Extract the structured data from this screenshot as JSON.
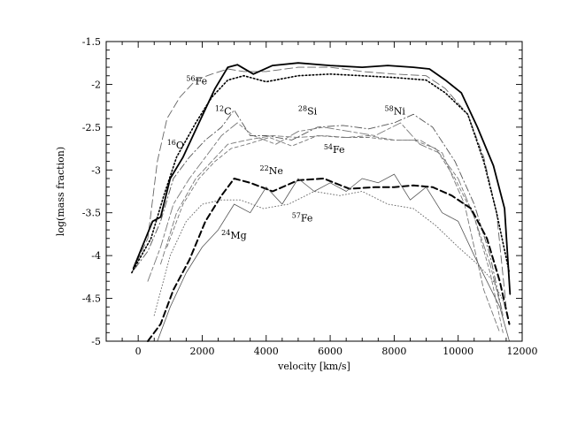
{
  "chart_data": {
    "type": "line",
    "title": "",
    "xlabel": "velocity [km/s]",
    "ylabel": "log(mass fraction)",
    "xlim": [
      -1000,
      12000
    ],
    "ylim": [
      -5,
      -1.5
    ],
    "x_ticks": [
      0,
      2000,
      4000,
      6000,
      8000,
      10000,
      12000
    ],
    "x_tick_labels": [
      "0",
      "2000",
      "4000",
      "6000",
      "8000",
      "10000",
      "12000"
    ],
    "y_ticks": [
      -5,
      -4.5,
      -4,
      -3.5,
      -3,
      -2.5,
      -2,
      -1.5
    ],
    "y_tick_labels": [
      "-5",
      "-4.5",
      "-4",
      "-3.5",
      "-3",
      "-2.5",
      "-2",
      "-1.5"
    ],
    "grid": false,
    "legend": "none (curves labeled inline)",
    "series": [
      {
        "name": "56Fe",
        "style": "long-dash thin",
        "color": "#666666",
        "x": [
          -200,
          300,
          600,
          900,
          1300,
          1800,
          2300,
          2800,
          3300,
          4000,
          5000,
          6000,
          7000,
          8000,
          9000,
          9600,
          10300,
          10800,
          11200,
          11500
        ],
        "y": [
          -4.2,
          -3.8,
          -2.9,
          -2.4,
          -2.15,
          -1.95,
          -1.88,
          -1.82,
          -1.85,
          -1.85,
          -1.8,
          -1.8,
          -1.85,
          -1.88,
          -1.9,
          -2.05,
          -2.35,
          -2.85,
          -3.5,
          -4.6
        ]
      },
      {
        "name": "dotted (unlabeled)",
        "style": "dotted medium",
        "color": "#000000",
        "x": [
          -200,
          400,
          800,
          1200,
          1800,
          2300,
          2800,
          3300,
          4000,
          5000,
          6000,
          7000,
          8000,
          9000,
          9600,
          10300,
          10800,
          11200,
          11600
        ],
        "y": [
          -4.2,
          -3.8,
          -3.3,
          -2.85,
          -2.45,
          -2.15,
          -1.95,
          -1.9,
          -1.97,
          -1.9,
          -1.88,
          -1.9,
          -1.92,
          -1.95,
          -2.1,
          -2.35,
          -2.9,
          -3.5,
          -4.2
        ]
      },
      {
        "name": "16O",
        "style": "solid thick",
        "color": "#000000",
        "x": [
          -150,
          450,
          700,
          1000,
          1400,
          1900,
          2400,
          2800,
          3100,
          3600,
          4200,
          5000,
          6000,
          7000,
          7800,
          8600,
          9100,
          9600,
          10100,
          10600,
          11100,
          11450,
          11620
        ],
        "y": [
          -4.15,
          -3.6,
          -3.55,
          -3.1,
          -2.85,
          -2.45,
          -2.05,
          -1.8,
          -1.77,
          -1.88,
          -1.78,
          -1.75,
          -1.78,
          -1.8,
          -1.78,
          -1.8,
          -1.82,
          -1.95,
          -2.1,
          -2.5,
          -2.95,
          -3.45,
          -4.45
        ]
      },
      {
        "name": "12C",
        "style": "dash-dot",
        "color": "#555555",
        "x": [
          -100,
          300,
          700,
          1100,
          1600,
          2100,
          2600,
          3000,
          3500,
          4000,
          4800,
          5600,
          6400,
          7200,
          8000,
          8600,
          9200,
          9900,
          10500,
          11000,
          11400
        ],
        "y": [
          -4.15,
          -3.95,
          -3.6,
          -3.1,
          -2.85,
          -2.65,
          -2.5,
          -2.3,
          -2.6,
          -2.6,
          -2.65,
          -2.5,
          -2.48,
          -2.52,
          -2.45,
          -2.35,
          -2.5,
          -2.9,
          -3.4,
          -4.0,
          -4.7
        ]
      },
      {
        "name": "28Si",
        "style": "long-short dash",
        "color": "#777777",
        "x": [
          300,
          700,
          1100,
          1600,
          2100,
          2600,
          3100,
          3600,
          4300,
          5000,
          5800,
          6600,
          7400,
          8200,
          8800,
          9400,
          10000,
          10500,
          11000,
          11400
        ],
        "y": [
          -4.3,
          -3.9,
          -3.4,
          -3.1,
          -2.85,
          -2.6,
          -2.45,
          -2.6,
          -2.7,
          -2.55,
          -2.5,
          -2.55,
          -2.6,
          -2.45,
          -2.7,
          -2.8,
          -3.1,
          -3.55,
          -4.1,
          -4.7
        ]
      },
      {
        "name": "58Ni",
        "style": "dashed",
        "color": "#777777",
        "x": [
          700,
          1200,
          1800,
          2300,
          2800,
          3400,
          4200,
          5000,
          5800,
          6500,
          7200,
          8000,
          8800,
          9500,
          10200,
          10800,
          11300
        ],
        "y": [
          -4.1,
          -3.5,
          -3.1,
          -2.9,
          -2.7,
          -2.65,
          -2.6,
          -2.62,
          -2.6,
          -2.62,
          -2.6,
          -2.65,
          -2.65,
          -2.8,
          -3.4,
          -4.4,
          -4.9
        ]
      },
      {
        "name": "54Fe",
        "style": "short dash",
        "color": "#777777",
        "x": [
          900,
          1400,
          1900,
          2400,
          2900,
          3400,
          4100,
          4800,
          5600,
          6400,
          7200,
          7900,
          8600,
          9300,
          9900,
          10500,
          11000,
          11400
        ],
        "y": [
          -3.9,
          -3.4,
          -3.1,
          -2.9,
          -2.75,
          -2.7,
          -2.62,
          -2.72,
          -2.6,
          -2.62,
          -2.62,
          -2.65,
          -2.65,
          -2.75,
          -3.1,
          -3.55,
          -4.2,
          -4.9
        ]
      },
      {
        "name": "22Ne",
        "style": "dashed thick",
        "color": "#000000",
        "x": [
          300,
          700,
          1100,
          1600,
          2100,
          2600,
          3000,
          3500,
          4200,
          5000,
          5800,
          6600,
          7400,
          8000,
          8600,
          9200,
          9800,
          10400,
          10900,
          11300,
          11600
        ],
        "y": [
          -5.0,
          -4.8,
          -4.4,
          -4.05,
          -3.6,
          -3.3,
          -3.1,
          -3.15,
          -3.25,
          -3.12,
          -3.1,
          -3.22,
          -3.2,
          -3.2,
          -3.18,
          -3.2,
          -3.3,
          -3.45,
          -3.8,
          -4.3,
          -4.8
        ]
      },
      {
        "name": "57Fe",
        "style": "dotted thin",
        "color": "#666666",
        "x": [
          500,
          1000,
          1500,
          2000,
          2600,
          3200,
          3900,
          4700,
          5500,
          6300,
          7000,
          7800,
          8600,
          9300,
          10000,
          10600,
          11100,
          11500
        ],
        "y": [
          -4.7,
          -4.0,
          -3.6,
          -3.4,
          -3.35,
          -3.35,
          -3.45,
          -3.4,
          -3.25,
          -3.3,
          -3.25,
          -3.4,
          -3.45,
          -3.65,
          -3.9,
          -4.1,
          -4.3,
          -4.6
        ]
      },
      {
        "name": "24Mg",
        "style": "solid thin",
        "color": "#555555",
        "x": [
          600,
          1000,
          1500,
          2000,
          2500,
          3000,
          3500,
          4000,
          4500,
          5000,
          5500,
          6000,
          6500,
          7000,
          7500,
          8000,
          8500,
          9000,
          9500,
          10000,
          10500,
          10900,
          11300,
          11600
        ],
        "y": [
          -5.0,
          -4.6,
          -4.2,
          -3.9,
          -3.7,
          -3.4,
          -3.5,
          -3.2,
          -3.4,
          -3.1,
          -3.25,
          -3.15,
          -3.25,
          -3.1,
          -3.15,
          -3.05,
          -3.35,
          -3.2,
          -3.5,
          -3.6,
          -4.0,
          -4.3,
          -4.6,
          -5.0
        ]
      }
    ],
    "annotations": [
      {
        "mass": "56",
        "element": "Fe",
        "x": 1500,
        "y": -2.0
      },
      {
        "mass": "12",
        "element": "C",
        "x": 2400,
        "y": -2.35
      },
      {
        "mass": "28",
        "element": "Si",
        "x": 5000,
        "y": -2.35
      },
      {
        "mass": "58",
        "element": "Ni",
        "x": 7700,
        "y": -2.35
      },
      {
        "mass": "16",
        "element": "O",
        "x": 900,
        "y": -2.75
      },
      {
        "mass": "54",
        "element": "Fe",
        "x": 5800,
        "y": -2.8
      },
      {
        "mass": "22",
        "element": "Ne",
        "x": 3800,
        "y": -3.05
      },
      {
        "mass": "57",
        "element": "Fe",
        "x": 4800,
        "y": -3.6
      },
      {
        "mass": "24",
        "element": "Mg",
        "x": 2600,
        "y": -3.8
      }
    ]
  }
}
